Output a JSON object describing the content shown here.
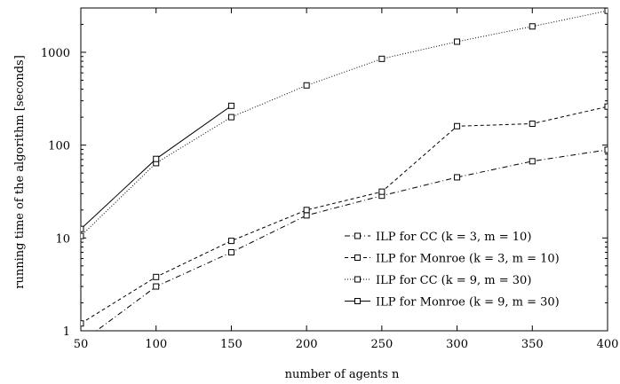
{
  "chart_data": {
    "type": "line",
    "xlabel": "number of agents n",
    "ylabel": "running time of the algorithm [seconds]",
    "xlim": [
      50,
      400
    ],
    "ylim": [
      1,
      3000
    ],
    "y_scale": "log",
    "x_ticks": [
      50,
      100,
      150,
      200,
      250,
      300,
      350,
      400
    ],
    "y_ticks": [
      1,
      10,
      100,
      1000
    ],
    "y_tick_labels": [
      "1",
      "10",
      "100",
      "1000"
    ],
    "grid": false,
    "legend_position": "bottom-right",
    "series": [
      {
        "name": "ILP for CC (k = 3, m = 10)",
        "line_style": "dash-dot",
        "marker": "square",
        "x": [
          50,
          100,
          150,
          200,
          250,
          300,
          350,
          400
        ],
        "y": [
          0.75,
          3.0,
          7.0,
          17.5,
          28.5,
          45.0,
          67.0,
          89.0
        ]
      },
      {
        "name": "ILP for Monroe (k = 3, m = 10)",
        "line_style": "dashed",
        "marker": "square",
        "x": [
          50,
          100,
          150,
          200,
          250,
          300,
          350,
          400
        ],
        "y": [
          1.2,
          3.8,
          9.3,
          20.0,
          31.5,
          160.0,
          170.0,
          260.0
        ]
      },
      {
        "name": "ILP for CC (k = 9, m = 30)",
        "line_style": "dotted",
        "marker": "square",
        "x": [
          50,
          100,
          150,
          200,
          250,
          300,
          350,
          400
        ],
        "y": [
          10.5,
          64.0,
          200.0,
          440.0,
          850.0,
          1300.0,
          1900.0,
          2800.0
        ]
      },
      {
        "name": "ILP for Monroe (k = 9, m = 30)",
        "line_style": "solid",
        "marker": "square",
        "x": [
          50,
          100,
          150
        ],
        "y": [
          12.5,
          71.0,
          265.0
        ]
      }
    ]
  }
}
